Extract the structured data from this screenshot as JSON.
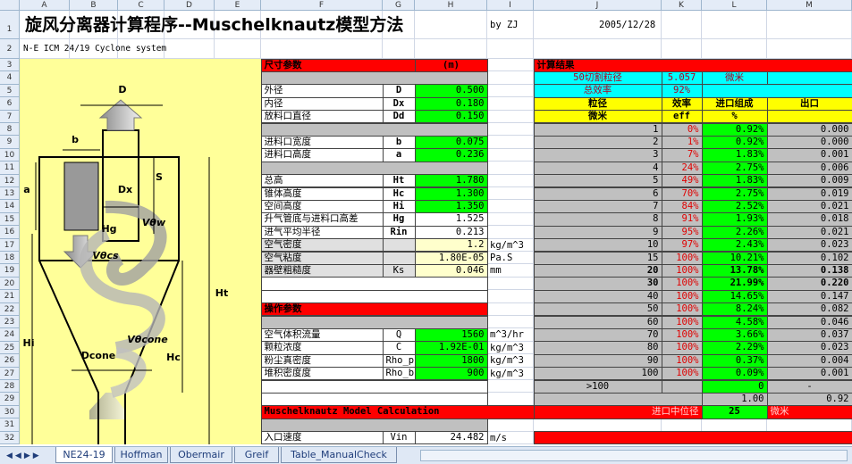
{
  "column_headers": [
    "A",
    "B",
    "C",
    "D",
    "E",
    "F",
    "G",
    "H",
    "I",
    "J",
    "K",
    "L",
    "M"
  ],
  "row_headers": [
    1,
    2,
    3,
    4,
    5,
    6,
    7,
    8,
    9,
    10,
    11,
    12,
    13,
    14,
    15,
    16,
    17,
    18,
    19,
    20,
    21,
    22,
    23,
    24,
    25,
    26,
    27,
    28,
    29,
    30,
    31,
    32
  ],
  "header": {
    "title": "旋风分离器计算程序--Muschelknautz模型方法",
    "author": "by ZJ",
    "date": "2005/12/28",
    "subtitle": "N-E ICM 24/19 Cyclone system"
  },
  "diagram": {
    "labels": [
      "D",
      "b",
      "a",
      "Dx",
      "S",
      "Hg",
      "Vθw",
      "Vθcs",
      "Ht",
      "Hi",
      "Hc",
      "Dcone",
      "Vθcone"
    ]
  },
  "dimensions": {
    "title": "尺寸参数",
    "unit": "(m)",
    "rows": [
      {
        "label": "外径",
        "symbol": "D",
        "value": "0.500"
      },
      {
        "label": "内径",
        "symbol": "Dx",
        "value": "0.180"
      },
      {
        "label": "放料口直径",
        "symbol": "Dd",
        "value": "0.150"
      },
      {
        "label": "进料口宽度",
        "symbol": "b",
        "value": "0.075"
      },
      {
        "label": "进料口高度",
        "symbol": "a",
        "value": "0.236"
      },
      {
        "label": "总高",
        "symbol": "Ht",
        "value": "1.780"
      },
      {
        "label": "锥体高度",
        "symbol": "Hc",
        "value": "1.300"
      },
      {
        "label": "空间高度",
        "symbol": "Hi",
        "value": "1.350"
      },
      {
        "label": "升气管底与进料口高差",
        "symbol": "Hg",
        "value": "1.525"
      },
      {
        "label": "进气平均半径",
        "symbol": "Rin",
        "value": "0.213"
      },
      {
        "label": "空气密度",
        "value": "1.2",
        "unit": "kg/m^3"
      },
      {
        "label": "空气粘度",
        "value": "1.80E-05",
        "unit": "Pa.S"
      },
      {
        "label": "器壁粗糙度",
        "symbol": "Ks",
        "value": "0.046",
        "unit": "mm"
      }
    ]
  },
  "operation": {
    "title": "操作参数",
    "rows": [
      {
        "label": "空气体积流量",
        "symbol": "Q",
        "value": "1560",
        "unit": "m^3/hr"
      },
      {
        "label": "颗粒浓度",
        "symbol": "C",
        "value": "1.92E-01",
        "unit": "kg/m^3"
      },
      {
        "label": "粉尘真密度",
        "symbol": "Rho_p",
        "value": "1800",
        "unit": "kg/m^3"
      },
      {
        "label": "堆积密度度",
        "symbol": "Rho_b",
        "value": "900",
        "unit": "kg/m^3"
      }
    ]
  },
  "model": {
    "title": "Muschelknautz Model Calculation",
    "rows": [
      {
        "label": "入口速度",
        "symbol": "Vin",
        "value": "24.482",
        "unit": "m/s"
      }
    ]
  },
  "results": {
    "title": "计算结果",
    "cut_size": {
      "label": "50切割粒径",
      "value": "5.057",
      "unit": "微米"
    },
    "total_efficiency": {
      "label": "总效率",
      "value": "92%"
    },
    "columns": [
      [
        "粒径",
        "微米"
      ],
      [
        "效率",
        "eff"
      ],
      [
        "进口组成",
        "%"
      ],
      [
        "出口"
      ]
    ],
    "rows": [
      [
        1,
        "0%",
        "0.92%",
        "0.000"
      ],
      [
        2,
        "1%",
        "0.92%",
        "0.000"
      ],
      [
        3,
        "7%",
        "1.83%",
        "0.001"
      ],
      [
        4,
        "24%",
        "2.75%",
        "0.006"
      ],
      [
        5,
        "49%",
        "1.83%",
        "0.009"
      ],
      [
        6,
        "70%",
        "2.75%",
        "0.019"
      ],
      [
        7,
        "84%",
        "2.52%",
        "0.021"
      ],
      [
        8,
        "91%",
        "1.93%",
        "0.018"
      ],
      [
        9,
        "95%",
        "2.26%",
        "0.021"
      ],
      [
        10,
        "97%",
        "2.43%",
        "0.023"
      ],
      [
        15,
        "100%",
        "10.21%",
        "0.102"
      ],
      [
        20,
        "100%",
        "13.78%",
        "0.138"
      ],
      [
        30,
        "100%",
        "21.99%",
        "0.220"
      ],
      [
        40,
        "100%",
        "14.65%",
        "0.147"
      ],
      [
        50,
        "100%",
        "8.24%",
        "0.082"
      ],
      [
        60,
        "100%",
        "4.58%",
        "0.046"
      ],
      [
        70,
        "100%",
        "3.66%",
        "0.037"
      ],
      [
        80,
        "100%",
        "2.29%",
        "0.023"
      ],
      [
        90,
        "100%",
        "0.37%",
        "0.004"
      ],
      [
        100,
        "100%",
        "0.09%",
        "0.001"
      ]
    ],
    "over": {
      "label": ">100",
      "composition": "0",
      "outlet": "-"
    },
    "totals": {
      "composition": "1.00",
      "outlet": "0.92"
    },
    "median": {
      "label": "进口中位径",
      "value": "25",
      "unit": "微米"
    }
  },
  "tabs": [
    "NE24-19",
    "Hoffman",
    "Obermair",
    "Greif",
    "Table_ManualCheck"
  ]
}
